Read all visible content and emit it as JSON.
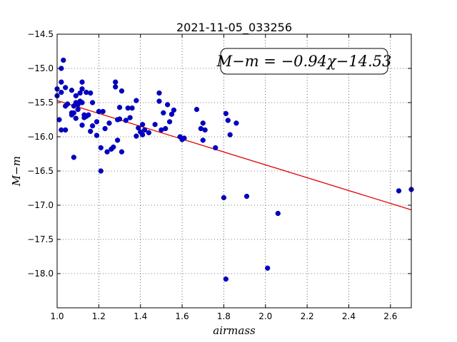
{
  "chart_data": {
    "type": "scatter",
    "title": "2021-11-05_033256",
    "xlabel": "airmass",
    "ylabel": "M−m",
    "xlim": [
      1.0,
      2.7
    ],
    "ylim": [
      -18.5,
      -14.5
    ],
    "y_inverted": true,
    "grid": true,
    "x_ticks": [
      1.0,
      1.2,
      1.4,
      1.6,
      1.8,
      2.0,
      2.2,
      2.4,
      2.6
    ],
    "x_tick_labels": [
      "1.0",
      "1.2",
      "1.4",
      "1.6",
      "1.8",
      "2.0",
      "2.2",
      "2.4",
      "2.6"
    ],
    "y_ticks": [
      -14.5,
      -15.0,
      -15.5,
      -16.0,
      -16.5,
      -17.0,
      -17.5,
      -18.0
    ],
    "y_tick_labels": [
      "−14.5",
      "−15.0",
      "−15.5",
      "−16.0",
      "−16.5",
      "−17.0",
      "−17.5",
      "−18.0"
    ],
    "annotation": "M−m = −0.94χ−14.53",
    "fit": {
      "slope": -0.94,
      "intercept": -14.53,
      "color": "#e00000"
    },
    "point_color": "#0000cc",
    "x": [
      1.0,
      1.0,
      1.01,
      1.02,
      1.02,
      1.02,
      1.02,
      1.03,
      1.04,
      1.04,
      1.04,
      1.05,
      1.07,
      1.07,
      1.07,
      1.08,
      1.08,
      1.08,
      1.09,
      1.09,
      1.09,
      1.1,
      1.1,
      1.11,
      1.11,
      1.12,
      1.12,
      1.12,
      1.12,
      1.13,
      1.13,
      1.14,
      1.14,
      1.15,
      1.16,
      1.16,
      1.17,
      1.17,
      1.19,
      1.19,
      1.2,
      1.21,
      1.21,
      1.22,
      1.23,
      1.24,
      1.25,
      1.26,
      1.27,
      1.28,
      1.28,
      1.29,
      1.29,
      1.3,
      1.3,
      1.31,
      1.31,
      1.33,
      1.34,
      1.35,
      1.36,
      1.38,
      1.38,
      1.39,
      1.4,
      1.41,
      1.41,
      1.42,
      1.44,
      1.47,
      1.49,
      1.49,
      1.5,
      1.51,
      1.52,
      1.53,
      1.54,
      1.55,
      1.56,
      1.59,
      1.6,
      1.61,
      1.67,
      1.69,
      1.7,
      1.7,
      1.71,
      1.76,
      1.8,
      1.81,
      1.81,
      1.82,
      1.83,
      1.86,
      1.91,
      2.01,
      2.06,
      2.64,
      2.7
    ],
    "y": [
      -15.3,
      -15.4,
      -15.75,
      -15.0,
      -15.2,
      -15.35,
      -15.9,
      -14.88,
      -15.28,
      -15.55,
      -15.9,
      -15.52,
      -15.32,
      -15.65,
      -15.68,
      -16.3,
      -15.65,
      -15.55,
      -15.4,
      -15.5,
      -15.73,
      -15.53,
      -15.6,
      -15.36,
      -15.48,
      -15.2,
      -15.3,
      -15.5,
      -15.83,
      -15.68,
      -15.72,
      -15.35,
      -15.7,
      -15.68,
      -15.36,
      -15.92,
      -15.5,
      -15.84,
      -15.78,
      -15.98,
      -15.63,
      -16.16,
      -16.5,
      -15.63,
      -15.88,
      -16.22,
      -15.8,
      -16.18,
      -16.15,
      -15.2,
      -15.27,
      -15.75,
      -16.05,
      -15.57,
      -15.74,
      -16.22,
      -15.33,
      -15.76,
      -15.58,
      -15.72,
      -15.58,
      -15.47,
      -15.99,
      -15.87,
      -15.93,
      -15.82,
      -15.97,
      -15.9,
      -15.94,
      -15.82,
      -15.36,
      -15.48,
      -15.9,
      -15.65,
      -15.88,
      -15.53,
      -15.78,
      -15.67,
      -15.61,
      -16.0,
      -16.04,
      -16.02,
      -15.6,
      -15.88,
      -15.8,
      -16.05,
      -15.9,
      -16.16,
      -16.89,
      -15.66,
      -18.08,
      -15.76,
      -15.97,
      -15.8,
      -16.87,
      -17.92,
      -17.12,
      -16.79,
      -16.77
    ]
  }
}
